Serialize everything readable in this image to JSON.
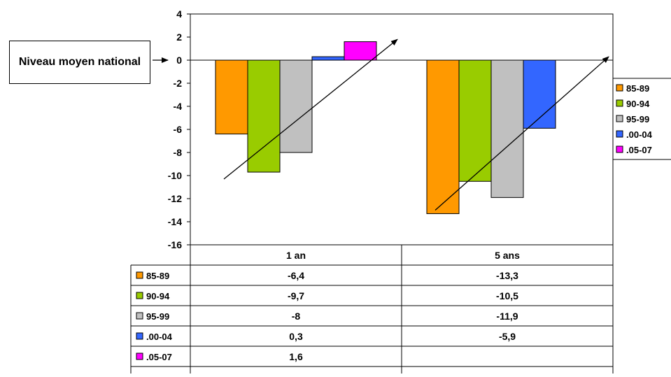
{
  "callout": {
    "text": "Niveau moyen national"
  },
  "chart_data": {
    "type": "bar",
    "categories": [
      "1 an",
      "5 ans"
    ],
    "series": [
      {
        "name": "85-89",
        "color": "#FF9900",
        "values": [
          -6.4,
          -13.3
        ]
      },
      {
        "name": "90-94",
        "color": "#99CC00",
        "values": [
          -9.7,
          -10.5
        ]
      },
      {
        "name": "95-99",
        "color": "#C0C0C0",
        "values": [
          -8,
          -11.9
        ]
      },
      {
        "name": ".00-04",
        "color": "#3366FF",
        "values": [
          0.3,
          -5.9
        ]
      },
      {
        "name": ".05-07",
        "color": "#FF00FF",
        "values": [
          1.6,
          null
        ]
      }
    ],
    "table_values": [
      [
        "-6,4",
        "-13,3"
      ],
      [
        "-9,7",
        "-10,5"
      ],
      [
        "-8",
        "-11,9"
      ],
      [
        "0,3",
        "-5,9"
      ],
      [
        "1,6",
        ""
      ]
    ],
    "ylim": [
      -16,
      4
    ],
    "y_ticks": [
      4,
      2,
      0,
      -2,
      -4,
      -6,
      -8,
      -10,
      -12,
      -14,
      -16
    ],
    "legend_position": "right",
    "data_table": true,
    "trend_arrows": [
      {
        "category": "1 an",
        "from": -10.3,
        "to": 1.8
      },
      {
        "category": "5 ans",
        "from": -13.0,
        "to": 0.3
      }
    ],
    "title": "",
    "xlabel": "",
    "ylabel": ""
  }
}
